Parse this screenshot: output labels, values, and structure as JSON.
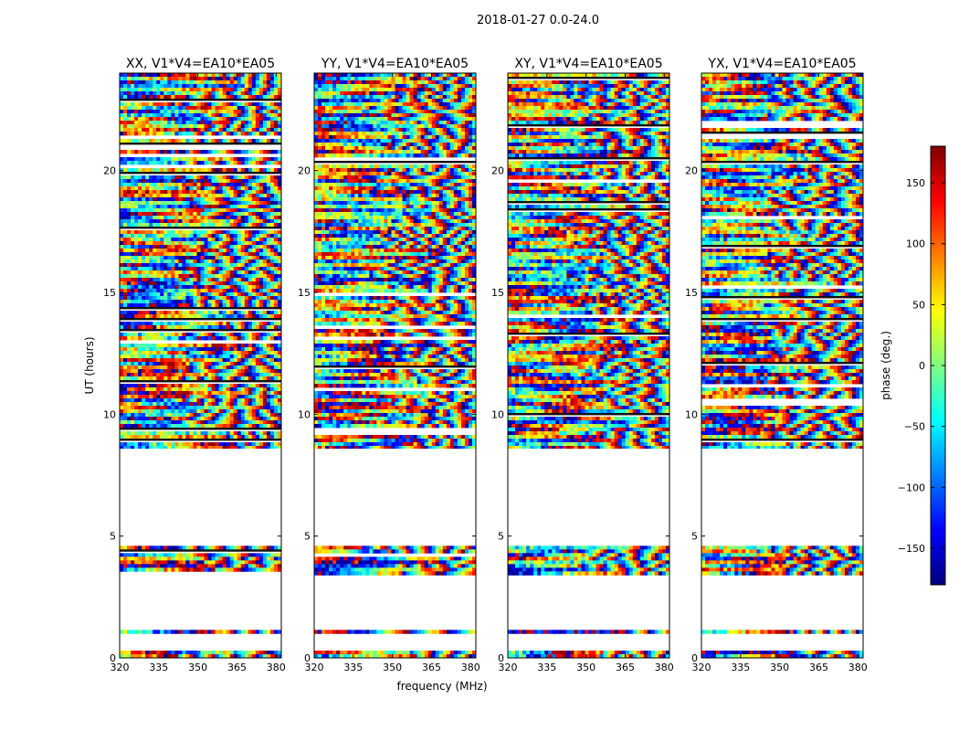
{
  "figure": {
    "suptitle": "2018-01-27 0.0-24.0",
    "xlabel": "frequency (MHz)",
    "ylabel": "UT (hours)"
  },
  "colorbar": {
    "label": "phase (deg.)",
    "ticks": [
      150,
      100,
      50,
      0,
      -50,
      -100,
      -150
    ],
    "tick_labels": [
      "150",
      "100",
      "50",
      "0",
      "−50",
      "−100",
      "−150"
    ],
    "range": [
      -180,
      180
    ],
    "colormap": "jet",
    "jet_stops": [
      "#00007f",
      "#0000ff",
      "#007fff",
      "#00ffff",
      "#7fff7f",
      "#ffff00",
      "#ff7f00",
      "#ff0000",
      "#7f0000"
    ]
  },
  "chart_data": {
    "type": "heatmap",
    "value_name": "phase (deg.)",
    "xlim": [
      320,
      382
    ],
    "ylim": [
      0,
      24
    ],
    "x_ticks": [
      320,
      335,
      350,
      365,
      380
    ],
    "x_tick_labels": [
      "320",
      "335",
      "350",
      "365",
      "380"
    ],
    "y_ticks": [
      0,
      5,
      10,
      15,
      20
    ],
    "y_tick_labels": [
      "0",
      "5",
      "10",
      "15",
      "20"
    ],
    "data_ranges_hours": [
      [
        0.0,
        0.3
      ],
      [
        1.0,
        1.15
      ],
      [
        3.4,
        4.6
      ],
      [
        8.6,
        24.0
      ]
    ],
    "empty_ranges_hours": [
      [
        0.3,
        1.0
      ],
      [
        1.15,
        3.4
      ],
      [
        4.6,
        8.6
      ]
    ],
    "panels": [
      {
        "title": "XX, V1*V4=EA10*EA05",
        "pol": "XX"
      },
      {
        "title": "YY, V1*V4=EA10*EA05",
        "pol": "YY"
      },
      {
        "title": "XY, V1*V4=EA10*EA05",
        "pol": "XY"
      },
      {
        "title": "YX, V1*V4=EA10*EA05",
        "pol": "YX"
      }
    ]
  }
}
